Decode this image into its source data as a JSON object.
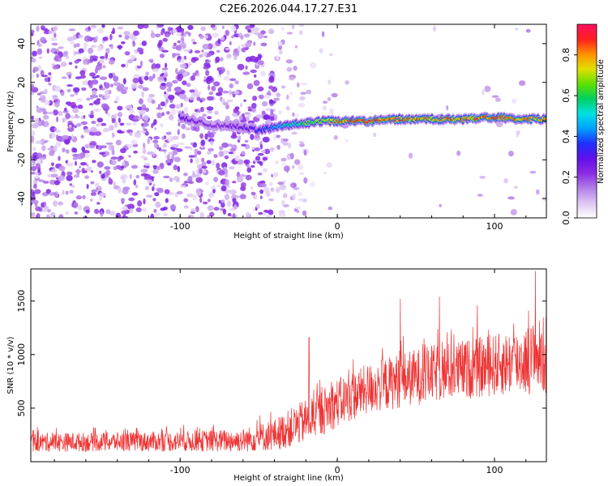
{
  "figure_title": "C2E6.2026.044.17.27.E31",
  "chart_data": [
    {
      "type": "heatmap",
      "title": "C2E6.2026.044.17.27.E31",
      "xlabel": "Height of straight line (km)",
      "ylabel": "Frequency (Hz)",
      "xlim": [
        -195,
        133
      ],
      "ylim": [
        -50,
        50
      ],
      "xticks": [
        -100,
        0,
        100
      ],
      "xtick_labels": [
        "-100",
        "0",
        "100"
      ],
      "yticks": [
        -40,
        -20,
        0,
        20,
        40
      ],
      "ytick_labels": [
        "-40",
        "-20",
        "0",
        "20",
        "40"
      ],
      "colorbar": {
        "label": "Normalized spectral amplitude",
        "range": [
          0,
          0.95
        ],
        "ticks": [
          0,
          0.2,
          0.4,
          0.6,
          0.8
        ],
        "tick_labels": [
          "0.0",
          "0.2",
          "0.4",
          "0.6",
          "0.8"
        ],
        "colors": [
          "#ffffff",
          "#ddc6f2",
          "#b27ee8",
          "#8a2be2",
          "#6010e8",
          "#2030ff",
          "#00a0ff",
          "#00e0e0",
          "#00d060",
          "#60e000",
          "#e0e000",
          "#ff9000",
          "#ff2020",
          "#ff1060"
        ]
      },
      "ridge": {
        "description": "narrow high-amplitude band near 0 Hz for heights above about -30 km",
        "points": [
          {
            "x": -100,
            "y": 2,
            "v": 0.3
          },
          {
            "x": -80,
            "y": -2,
            "v": 0.22
          },
          {
            "x": -60,
            "y": -3,
            "v": 0.28
          },
          {
            "x": -50,
            "y": -5,
            "v": 0.35
          },
          {
            "x": -40,
            "y": -3,
            "v": 0.45
          },
          {
            "x": -30,
            "y": -2,
            "v": 0.55
          },
          {
            "x": -20,
            "y": -1,
            "v": 0.62
          },
          {
            "x": -10,
            "y": 0,
            "v": 0.7
          },
          {
            "x": 0,
            "y": 0,
            "v": 0.8
          },
          {
            "x": 20,
            "y": 0,
            "v": 0.88
          },
          {
            "x": 40,
            "y": 1,
            "v": 0.82
          },
          {
            "x": 60,
            "y": 1,
            "v": 0.78
          },
          {
            "x": 80,
            "y": 1,
            "v": 0.82
          },
          {
            "x": 100,
            "y": 2,
            "v": 0.85
          },
          {
            "x": 120,
            "y": 1,
            "v": 0.8
          },
          {
            "x": 133,
            "y": 1,
            "v": 0.75
          }
        ]
      },
      "background_noise": "scattered low-amplitude (0.05-0.25) speckle across all frequencies for heights below about -30 km, fading out between -30 km and 0 km"
    },
    {
      "type": "line",
      "xlabel": "Height of straight line (km)",
      "ylabel": "SNR (10 * v/v)",
      "xlim": [
        -195,
        133
      ],
      "ylim": [
        0,
        1800
      ],
      "xticks": [
        -100,
        0,
        100
      ],
      "xtick_labels": [
        "-100",
        "0",
        "100"
      ],
      "yticks": [
        500,
        1000,
        1500
      ],
      "ytick_labels": [
        "500",
        "1000",
        "1500"
      ],
      "series": [
        {
          "name": "SNR",
          "color": "#ee3333",
          "envelope": {
            "x": [
              -195,
              -150,
              -100,
              -60,
              -40,
              -20,
              0,
              20,
              40,
              60,
              80,
              100,
              120,
              133
            ],
            "mean": [
              180,
              185,
              190,
              200,
              250,
              380,
              550,
              680,
              760,
              820,
              860,
              900,
              950,
              1000
            ],
            "spread": [
              90,
              90,
              95,
              110,
              150,
              210,
              230,
              240,
              260,
              270,
              280,
              290,
              320,
              380
            ]
          },
          "notable_peaks": [
            {
              "x": 126,
              "y": 1780
            },
            {
              "x": 65,
              "y": 1540
            },
            {
              "x": 89,
              "y": 1460
            },
            {
              "x": 40,
              "y": 1520
            },
            {
              "x": -18,
              "y": 1160
            }
          ]
        }
      ]
    }
  ]
}
